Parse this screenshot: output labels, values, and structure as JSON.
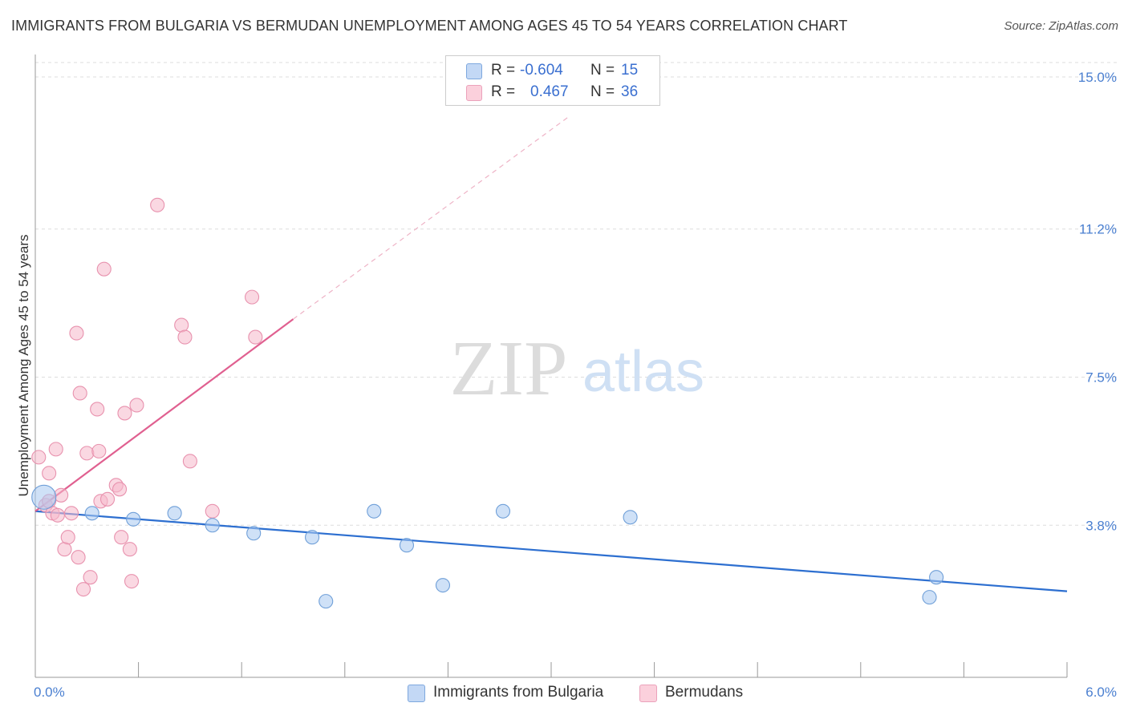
{
  "header": {
    "title": "IMMIGRANTS FROM BULGARIA VS BERMUDAN UNEMPLOYMENT AMONG AGES 45 TO 54 YEARS CORRELATION CHART",
    "source": "Source: ZipAtlas.com"
  },
  "watermark": {
    "zip": "ZIP",
    "atlas": "atlas"
  },
  "legend": {
    "rows": [
      {
        "r_label": "R =",
        "r_value": "-0.604",
        "n_label": "N =",
        "n_value": "15",
        "color": "#a8c8f0"
      },
      {
        "r_label": "R =",
        "r_value": "0.467",
        "n_label": "N =",
        "n_value": "36",
        "color": "#f5b8cb"
      }
    ]
  },
  "bottom_legend": [
    {
      "label": "Immigrants from Bulgaria",
      "color": "#a8c8f0"
    },
    {
      "label": "Bermudans",
      "color": "#f5b8cb"
    }
  ],
  "chart_data": {
    "type": "scatter",
    "title": "IMMIGRANTS FROM BULGARIA VS BERMUDAN UNEMPLOYMENT AMONG AGES 45 TO 54 YEARS CORRELATION CHART",
    "xlabel": "",
    "ylabel": "Unemployment Among Ages 45 to 54 years",
    "xlim": [
      0,
      6.0
    ],
    "ylim": [
      0,
      15.0
    ],
    "x_tick_labels": [
      "0.0%",
      "6.0%"
    ],
    "y_ticks": [
      3.8,
      7.5,
      11.2,
      15.0
    ],
    "y_tick_labels": [
      "3.8%",
      "7.5%",
      "11.2%",
      "15.0%"
    ],
    "grid": true,
    "series": [
      {
        "name": "Immigrants from Bulgaria",
        "color": "#a8c8f0",
        "edge": "#6f9fd8",
        "line_color": "#2d6fd0",
        "points": [
          [
            0.05,
            4.5
          ],
          [
            0.33,
            4.1
          ],
          [
            0.57,
            3.95
          ],
          [
            0.81,
            4.1
          ],
          [
            1.03,
            3.8
          ],
          [
            1.27,
            3.6
          ],
          [
            1.61,
            3.5
          ],
          [
            1.69,
            1.9
          ],
          [
            1.97,
            4.15
          ],
          [
            2.16,
            3.3
          ],
          [
            2.37,
            2.3
          ],
          [
            2.72,
            4.15
          ],
          [
            3.46,
            4.0
          ],
          [
            5.2,
            2.0
          ],
          [
            5.24,
            2.5
          ]
        ],
        "trend": {
          "x0": 0.0,
          "y0": 4.15,
          "x1": 6.0,
          "y1": 2.15
        }
      },
      {
        "name": "Bermudans",
        "color": "#f5b8cb",
        "edge": "#e892ae",
        "line_color": "#e06090",
        "points": [
          [
            0.02,
            5.5
          ],
          [
            0.06,
            4.3
          ],
          [
            0.08,
            4.4
          ],
          [
            0.08,
            5.1
          ],
          [
            0.1,
            4.1
          ],
          [
            0.12,
            5.7
          ],
          [
            0.13,
            4.05
          ],
          [
            0.15,
            4.55
          ],
          [
            0.17,
            3.2
          ],
          [
            0.19,
            3.5
          ],
          [
            0.21,
            4.1
          ],
          [
            0.24,
            8.6
          ],
          [
            0.25,
            3.0
          ],
          [
            0.26,
            7.1
          ],
          [
            0.28,
            2.2
          ],
          [
            0.3,
            5.6
          ],
          [
            0.32,
            2.5
          ],
          [
            0.36,
            6.7
          ],
          [
            0.37,
            5.65
          ],
          [
            0.38,
            4.4
          ],
          [
            0.4,
            10.2
          ],
          [
            0.42,
            4.45
          ],
          [
            0.47,
            4.8
          ],
          [
            0.49,
            4.7
          ],
          [
            0.5,
            3.5
          ],
          [
            0.52,
            6.6
          ],
          [
            0.55,
            3.2
          ],
          [
            0.56,
            2.4
          ],
          [
            0.59,
            6.8
          ],
          [
            0.71,
            11.8
          ],
          [
            0.85,
            8.8
          ],
          [
            0.87,
            8.5
          ],
          [
            0.9,
            5.4
          ],
          [
            1.03,
            4.15
          ],
          [
            1.26,
            9.5
          ],
          [
            1.28,
            8.5
          ]
        ],
        "trend": {
          "x0": 0.0,
          "y0": 4.15,
          "x1": 1.5,
          "y1": 8.95
        },
        "trend_extension": {
          "x0": 1.5,
          "y0": 8.95,
          "x1": 3.1,
          "y1": 14.0
        }
      }
    ]
  }
}
